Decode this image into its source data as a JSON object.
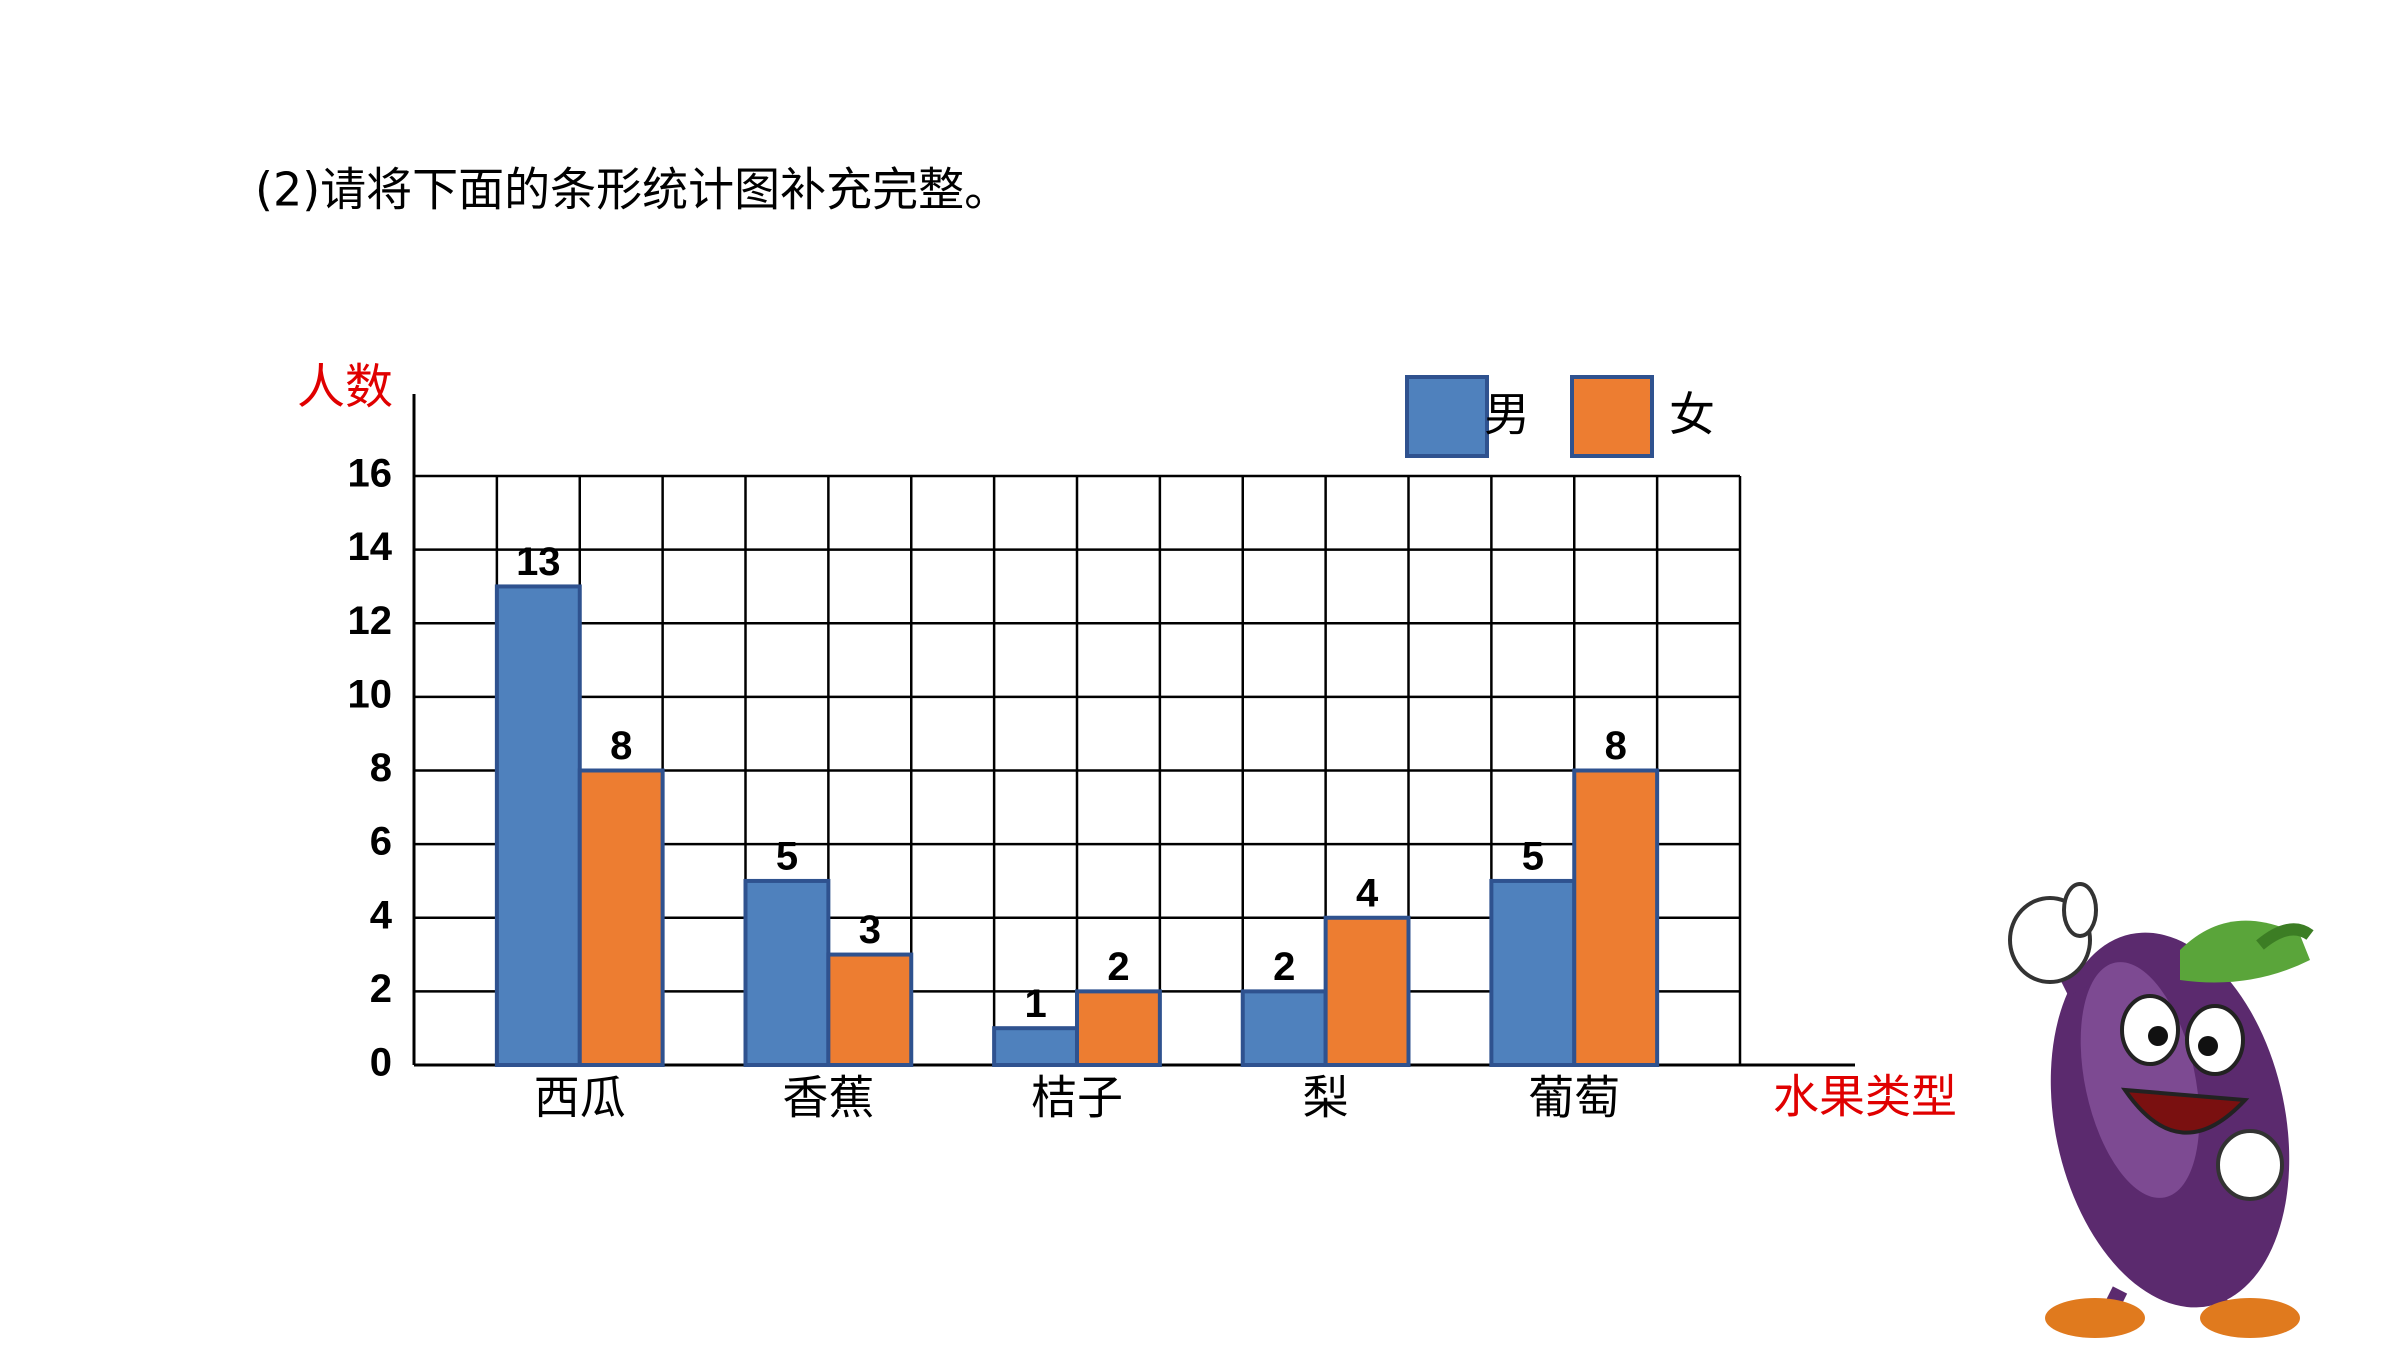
{
  "chart_data": {
    "type": "bar",
    "title": "(2)请将下面的条形统计图补充完整。",
    "y_label": "人数",
    "x_label": "水果类型",
    "categories": [
      "西瓜",
      "香蕉",
      "桔子",
      "梨",
      "葡萄"
    ],
    "series": [
      {
        "name": "男",
        "color": "#4f81bd",
        "values": [
          13,
          5,
          1,
          2,
          5
        ]
      },
      {
        "name": "女",
        "color": "#ed7d31",
        "values": [
          8,
          3,
          2,
          4,
          8
        ]
      }
    ],
    "ylim": [
      0,
      16
    ],
    "yticks": [
      0,
      2,
      4,
      6,
      8,
      10,
      12,
      14,
      16
    ],
    "grid": true
  }
}
